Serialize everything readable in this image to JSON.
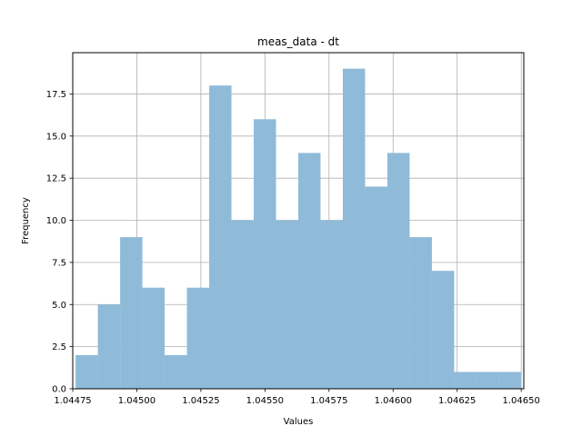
{
  "chart_data": {
    "type": "bar",
    "title": "meas_data - dt",
    "xlabel": "Values",
    "ylabel": "Frequency",
    "bar_color": "#8fbbd9",
    "grid": true,
    "bin_start": 1.044761,
    "bin_width": 8.69e-05,
    "xlim": [
      1.04475,
      1.04651
    ],
    "ylim": [
      0,
      19.95
    ],
    "values": [
      2,
      5,
      9,
      6,
      2,
      6,
      18,
      10,
      16,
      10,
      14,
      10,
      19,
      12,
      14,
      9,
      7,
      1,
      1,
      1
    ],
    "x_ticks": [
      1.04475,
      1.045,
      1.04525,
      1.0455,
      1.04575,
      1.046,
      1.04625,
      1.0465
    ],
    "x_tick_labels": [
      "1.04475",
      "1.04500",
      "1.04525",
      "1.04550",
      "1.04575",
      "1.04600",
      "1.04625",
      "1.04650"
    ],
    "y_ticks": [
      0,
      2.5,
      5,
      7.5,
      10,
      12.5,
      15,
      17.5
    ],
    "y_tick_labels": [
      "0.0",
      "2.5",
      "5.0",
      "7.5",
      "10.0",
      "12.5",
      "15.0",
      "17.5"
    ]
  }
}
